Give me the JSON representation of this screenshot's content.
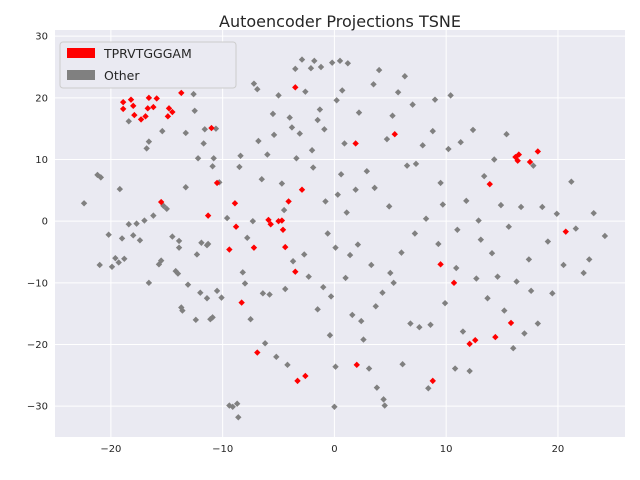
{
  "chart_data": {
    "type": "scatter",
    "title": "Autoencoder Projections TSNE",
    "xlabel": "",
    "ylabel": "",
    "xlim": [
      -25,
      26
    ],
    "ylim": [
      -35,
      31
    ],
    "xticks": [
      -20,
      -10,
      0,
      10,
      20
    ],
    "yticks": [
      -30,
      -20,
      -10,
      0,
      10,
      20,
      30
    ],
    "xtick_labels": [
      "−20",
      "−10",
      "0",
      "10",
      "20"
    ],
    "ytick_labels": [
      "−30",
      "−20",
      "−10",
      "0",
      "10",
      "20",
      "30"
    ],
    "grid": true,
    "legend_position": "top-left",
    "colors": {
      "background": "#eaeaf2",
      "grid": "#ffffff",
      "highlight": "#ff0000",
      "other": "#808080"
    },
    "series": [
      {
        "name": "TPRVTGGGAM",
        "color": "#ff0000",
        "points": [
          [
            -18.9,
            19.3
          ],
          [
            -18.9,
            18.2
          ],
          [
            -18.2,
            19.7
          ],
          [
            -18.0,
            18.7
          ],
          [
            -17.9,
            17.2
          ],
          [
            -17.3,
            16.5
          ],
          [
            -16.9,
            17.0
          ],
          [
            -16.7,
            18.3
          ],
          [
            -16.6,
            20.0
          ],
          [
            -16.2,
            18.5
          ],
          [
            -15.9,
            19.9
          ],
          [
            -15.5,
            3.1
          ],
          [
            -14.9,
            17.0
          ],
          [
            -14.8,
            18.3
          ],
          [
            -14.5,
            17.7
          ],
          [
            -13.7,
            20.8
          ],
          [
            -11.0,
            15.1
          ],
          [
            -11.3,
            0.9
          ],
          [
            -10.5,
            6.2
          ],
          [
            -9.4,
            -4.6
          ],
          [
            -8.9,
            2.9
          ],
          [
            -8.8,
            -0.9
          ],
          [
            -8.3,
            -13.2
          ],
          [
            -7.2,
            -4.3
          ],
          [
            -6.9,
            -21.3
          ],
          [
            -5.9,
            0.2
          ],
          [
            -5.7,
            -0.5
          ],
          [
            -5.0,
            0.0
          ],
          [
            -4.7,
            0.1
          ],
          [
            -4.6,
            -1.4
          ],
          [
            -4.4,
            -4.2
          ],
          [
            -4.1,
            3.2
          ],
          [
            -3.5,
            -8.2
          ],
          [
            -3.5,
            21.7
          ],
          [
            -3.3,
            -25.9
          ],
          [
            -2.9,
            5.1
          ],
          [
            -2.6,
            -25.1
          ],
          [
            1.9,
            12.6
          ],
          [
            2.0,
            -23.3
          ],
          [
            5.4,
            14.1
          ],
          [
            8.8,
            -25.9
          ],
          [
            9.5,
            -7.0
          ],
          [
            10.7,
            -10.0
          ],
          [
            12.1,
            -19.9
          ],
          [
            12.6,
            -19.3
          ],
          [
            13.9,
            6.0
          ],
          [
            14.4,
            -18.8
          ],
          [
            15.8,
            -16.5
          ],
          [
            16.2,
            10.4
          ],
          [
            16.4,
            9.8
          ],
          [
            16.5,
            10.8
          ],
          [
            17.5,
            9.6
          ],
          [
            18.2,
            11.3
          ],
          [
            20.7,
            -1.7
          ]
        ]
      },
      {
        "name": "Other",
        "color": "#808080",
        "points": [
          [
            -22.4,
            2.9
          ],
          [
            -21.2,
            7.5
          ],
          [
            -20.9,
            7.1
          ],
          [
            -21.0,
            -7.1
          ],
          [
            -19.9,
            -7.4
          ],
          [
            -19.6,
            -6.0
          ],
          [
            -19.3,
            -6.7
          ],
          [
            -19.2,
            5.2
          ],
          [
            -18.8,
            -6.1
          ],
          [
            -19.0,
            -2.8
          ],
          [
            -18.4,
            -0.5
          ],
          [
            -18.0,
            -2.3
          ],
          [
            -17.7,
            -0.4
          ],
          [
            -17.4,
            -3.1
          ],
          [
            -17.0,
            0.1
          ],
          [
            -18.4,
            16.2
          ],
          [
            -16.8,
            11.8
          ],
          [
            -16.6,
            12.9
          ],
          [
            -16.6,
            -10.0
          ],
          [
            -16.2,
            0.9
          ],
          [
            -15.7,
            -7.0
          ],
          [
            -15.5,
            -6.4
          ],
          [
            -15.4,
            14.6
          ],
          [
            -15.3,
            2.5
          ],
          [
            -14.5,
            -2.5
          ],
          [
            -14.2,
            -8.1
          ],
          [
            -14.0,
            -8.5
          ],
          [
            -13.9,
            -4.3
          ],
          [
            -13.9,
            -3.2
          ],
          [
            -13.7,
            -14.0
          ],
          [
            -13.6,
            -14.5
          ],
          [
            -13.3,
            5.5
          ],
          [
            -13.1,
            -10.3
          ],
          [
            -12.6,
            20.6
          ],
          [
            -12.5,
            17.9
          ],
          [
            -12.4,
            -16.0
          ],
          [
            -12.3,
            -5.4
          ],
          [
            -12.2,
            10.2
          ],
          [
            -12.0,
            -11.6
          ],
          [
            -11.9,
            -3.5
          ],
          [
            -11.7,
            12.6
          ],
          [
            -11.6,
            14.9
          ],
          [
            -11.4,
            -12.5
          ],
          [
            -11.4,
            -3.9
          ],
          [
            -11.3,
            -3.7
          ],
          [
            -11.1,
            -15.9
          ],
          [
            -10.9,
            -15.6
          ],
          [
            -10.9,
            8.9
          ],
          [
            -10.8,
            10.2
          ],
          [
            -10.6,
            15.0
          ],
          [
            -10.5,
            -11.3
          ],
          [
            -10.3,
            6.3
          ],
          [
            -10.1,
            -12.4
          ],
          [
            -9.4,
            -29.9
          ],
          [
            -9.1,
            -30.1
          ],
          [
            -8.7,
            -29.6
          ],
          [
            -8.6,
            -31.8
          ],
          [
            -8.4,
            10.6
          ],
          [
            -8.5,
            8.8
          ],
          [
            -8.2,
            -8.3
          ],
          [
            -8.0,
            -10.1
          ],
          [
            -7.5,
            -15.9
          ],
          [
            -7.3,
            0.0
          ],
          [
            -7.2,
            22.3
          ],
          [
            -6.9,
            21.4
          ],
          [
            -6.8,
            13.0
          ],
          [
            -6.5,
            6.8
          ],
          [
            -6.4,
            -11.7
          ],
          [
            -6.2,
            -19.8
          ],
          [
            -6.0,
            10.8
          ],
          [
            -5.8,
            -11.9
          ],
          [
            -5.5,
            17.4
          ],
          [
            -5.4,
            14.0
          ],
          [
            -5.0,
            20.4
          ],
          [
            -4.7,
            6.1
          ],
          [
            -4.5,
            1.8
          ],
          [
            -4.4,
            -11.0
          ],
          [
            -4.0,
            16.8
          ],
          [
            -3.8,
            15.2
          ],
          [
            -3.7,
            -6.5
          ],
          [
            -3.5,
            24.7
          ],
          [
            -3.4,
            10.2
          ],
          [
            -3.1,
            14.2
          ],
          [
            -2.9,
            26.2
          ],
          [
            -2.6,
            21.0
          ],
          [
            -2.3,
            -9.0
          ],
          [
            -2.1,
            24.8
          ],
          [
            -2.0,
            11.5
          ],
          [
            -1.9,
            8.7
          ],
          [
            -1.8,
            26.0
          ],
          [
            -1.5,
            -14.3
          ],
          [
            -1.5,
            16.4
          ],
          [
            -1.2,
            25.0
          ],
          [
            -1.0,
            -10.7
          ],
          [
            -0.9,
            14.9
          ],
          [
            -0.8,
            3.2
          ],
          [
            -0.6,
            -2.0
          ],
          [
            -0.4,
            -18.5
          ],
          [
            -0.3,
            -12.2
          ],
          [
            -0.2,
            25.7
          ],
          [
            0.0,
            -30.1
          ],
          [
            0.1,
            -4.3
          ],
          [
            0.1,
            -23.6
          ],
          [
            0.2,
            19.6
          ],
          [
            0.3,
            4.3
          ],
          [
            0.5,
            26.0
          ],
          [
            0.7,
            21.2
          ],
          [
            0.9,
            12.6
          ],
          [
            1.0,
            -9.2
          ],
          [
            1.2,
            25.6
          ],
          [
            1.4,
            -5.5
          ],
          [
            1.6,
            -15.2
          ],
          [
            1.9,
            5.1
          ],
          [
            2.1,
            -3.8
          ],
          [
            2.2,
            17.6
          ],
          [
            2.4,
            -16.2
          ],
          [
            2.6,
            -19.2
          ],
          [
            2.9,
            8.1
          ],
          [
            3.1,
            -23.9
          ],
          [
            3.3,
            -7.1
          ],
          [
            3.5,
            22.2
          ],
          [
            3.6,
            5.4
          ],
          [
            3.8,
            -27.0
          ],
          [
            4.0,
            24.5
          ],
          [
            4.3,
            -11.6
          ],
          [
            4.4,
            -28.9
          ],
          [
            4.5,
            -29.9
          ],
          [
            4.7,
            13.3
          ],
          [
            4.9,
            2.4
          ],
          [
            5.2,
            17.1
          ],
          [
            5.3,
            -10.0
          ],
          [
            5.7,
            20.9
          ],
          [
            6.0,
            -5.1
          ],
          [
            6.3,
            23.5
          ],
          [
            6.5,
            9.0
          ],
          [
            6.8,
            -16.6
          ],
          [
            7.0,
            18.9
          ],
          [
            7.2,
            -2.0
          ],
          [
            7.6,
            -17.2
          ],
          [
            7.9,
            12.3
          ],
          [
            8.2,
            0.4
          ],
          [
            8.4,
            -27.1
          ],
          [
            8.6,
            -16.8
          ],
          [
            8.8,
            14.6
          ],
          [
            9.0,
            19.7
          ],
          [
            9.3,
            -3.7
          ],
          [
            9.5,
            6.2
          ],
          [
            9.9,
            -13.3
          ],
          [
            10.2,
            11.7
          ],
          [
            10.4,
            20.4
          ],
          [
            10.8,
            -23.9
          ],
          [
            11.0,
            -1.4
          ],
          [
            11.3,
            12.8
          ],
          [
            11.5,
            -17.9
          ],
          [
            11.8,
            3.3
          ],
          [
            12.1,
            -24.3
          ],
          [
            12.4,
            14.8
          ],
          [
            12.7,
            -9.3
          ],
          [
            13.1,
            -3.0
          ],
          [
            13.4,
            7.3
          ],
          [
            13.7,
            -12.5
          ],
          [
            14.1,
            -5.2
          ],
          [
            14.3,
            10.0
          ],
          [
            14.6,
            -9.0
          ],
          [
            14.9,
            2.6
          ],
          [
            15.2,
            -14.5
          ],
          [
            15.6,
            -0.9
          ],
          [
            16.0,
            -20.6
          ],
          [
            16.3,
            -9.8
          ],
          [
            16.7,
            2.3
          ],
          [
            17.0,
            -18.2
          ],
          [
            17.4,
            -6.2
          ],
          [
            17.8,
            9.0
          ],
          [
            18.2,
            -16.6
          ],
          [
            18.6,
            2.3
          ],
          [
            19.1,
            -3.3
          ],
          [
            19.5,
            -11.7
          ],
          [
            19.9,
            1.2
          ],
          [
            20.5,
            -7.1
          ],
          [
            21.2,
            6.4
          ],
          [
            21.6,
            -1.2
          ],
          [
            22.3,
            -8.4
          ],
          [
            22.8,
            -6.2
          ],
          [
            23.2,
            1.3
          ],
          [
            24.2,
            -2.4
          ],
          [
            -20.2,
            -2.2
          ],
          [
            -15.0,
            2.0
          ],
          [
            -9.6,
            0.5
          ],
          [
            -5.2,
            -22.0
          ],
          [
            -2.7,
            -5.4
          ],
          [
            1.1,
            1.4
          ],
          [
            3.7,
            -13.8
          ],
          [
            6.1,
            -23.2
          ],
          [
            9.7,
            2.7
          ],
          [
            12.9,
            0.1
          ],
          [
            17.6,
            -11.3
          ],
          [
            -7.8,
            -2.7
          ],
          [
            -4.2,
            -23.3
          ],
          [
            0.6,
            7.6
          ],
          [
            5.0,
            -8.4
          ],
          [
            10.9,
            -7.6
          ],
          [
            15.4,
            14.1
          ],
          [
            -13.3,
            14.3
          ],
          [
            -1.3,
            18.1
          ],
          [
            7.3,
            9.3
          ]
        ]
      }
    ]
  }
}
